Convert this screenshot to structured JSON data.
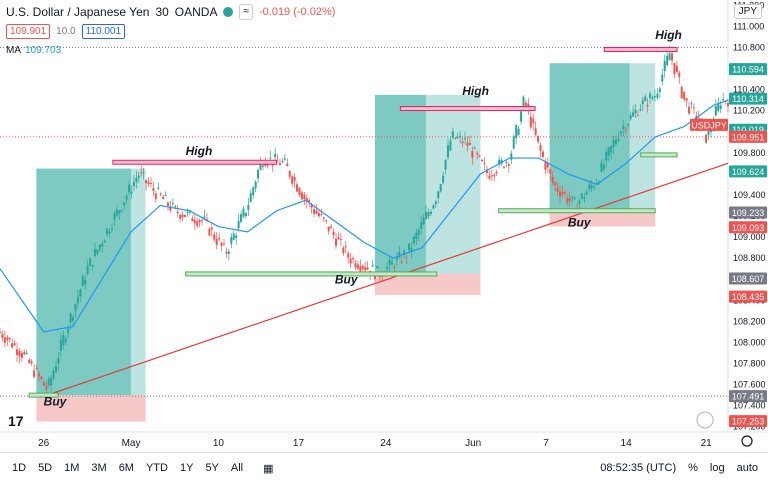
{
  "header": {
    "symbol_title": "U.S. Dollar / Japanese Yen",
    "interval": "30",
    "exchange": "OANDA",
    "change": "-0.019 (-0.02%)",
    "sell_price": "109.901",
    "spread": "10.0",
    "buy_price": "110.001",
    "ma_label": "MA",
    "ma_value": "109.703",
    "currency": "JPY"
  },
  "colors": {
    "up": "#26a69a",
    "down": "#ef5350",
    "ma": "#2196f3",
    "trend": "#e53935",
    "high": "#e91e63",
    "buy": "#4caf50",
    "profit": "#26a69a",
    "loss": "#ef9a9a"
  },
  "bottom": {
    "ranges": [
      "1D",
      "5D",
      "1M",
      "3M",
      "6M",
      "YTD",
      "1Y",
      "5Y",
      "All"
    ],
    "time": "08:52:35 (UTC)",
    "pct": "%",
    "log": "log",
    "auto": "auto"
  },
  "chart_data": {
    "type": "candlestick",
    "ylim": [
      107.15,
      111.25
    ],
    "y_ticks": [
      107.2,
      107.4,
      107.6,
      107.8,
      108.0,
      108.2,
      108.4,
      108.6,
      108.8,
      109.0,
      109.2,
      109.4,
      109.6,
      109.8,
      110.0,
      110.2,
      110.4,
      110.6,
      110.8,
      111.0,
      111.2
    ],
    "x_labels": [
      {
        "label": "26",
        "t": 0.06
      },
      {
        "label": "May",
        "t": 0.18
      },
      {
        "label": "10",
        "t": 0.3
      },
      {
        "label": "17",
        "t": 0.41
      },
      {
        "label": "24",
        "t": 0.53
      },
      {
        "label": "Jun",
        "t": 0.65
      },
      {
        "label": "7",
        "t": 0.75
      },
      {
        "label": "14",
        "t": 0.86
      },
      {
        "label": "21",
        "t": 0.97
      }
    ],
    "price_path": [
      [
        0,
        108.1
      ],
      [
        0.03,
        107.9
      ],
      [
        0.065,
        107.55
      ],
      [
        0.09,
        108.1
      ],
      [
        0.12,
        108.7
      ],
      [
        0.15,
        109.1
      ],
      [
        0.19,
        109.6
      ],
      [
        0.21,
        109.45
      ],
      [
        0.24,
        109.25
      ],
      [
        0.28,
        109.15
      ],
      [
        0.31,
        108.85
      ],
      [
        0.34,
        109.3
      ],
      [
        0.36,
        109.75
      ],
      [
        0.39,
        109.7
      ],
      [
        0.42,
        109.35
      ],
      [
        0.45,
        109.1
      ],
      [
        0.48,
        108.8
      ],
      [
        0.52,
        108.65
      ],
      [
        0.56,
        108.85
      ],
      [
        0.6,
        109.4
      ],
      [
        0.62,
        109.95
      ],
      [
        0.64,
        109.9
      ],
      [
        0.67,
        109.6
      ],
      [
        0.7,
        109.75
      ],
      [
        0.72,
        110.3
      ],
      [
        0.74,
        109.85
      ],
      [
        0.76,
        109.5
      ],
      [
        0.79,
        109.3
      ],
      [
        0.82,
        109.55
      ],
      [
        0.85,
        110.0
      ],
      [
        0.88,
        110.25
      ],
      [
        0.9,
        110.35
      ],
      [
        0.92,
        110.75
      ],
      [
        0.94,
        110.3
      ],
      [
        0.96,
        110.1
      ],
      [
        0.97,
        109.95
      ],
      [
        0.99,
        110.3
      ],
      [
        1.0,
        110.31
      ]
    ],
    "ma_path": [
      [
        0,
        108.7
      ],
      [
        0.06,
        108.1
      ],
      [
        0.1,
        108.15
      ],
      [
        0.14,
        108.6
      ],
      [
        0.18,
        109.05
      ],
      [
        0.22,
        109.3
      ],
      [
        0.26,
        109.25
      ],
      [
        0.3,
        109.1
      ],
      [
        0.34,
        109.05
      ],
      [
        0.38,
        109.25
      ],
      [
        0.42,
        109.35
      ],
      [
        0.46,
        109.15
      ],
      [
        0.5,
        108.95
      ],
      [
        0.54,
        108.8
      ],
      [
        0.58,
        108.9
      ],
      [
        0.62,
        109.25
      ],
      [
        0.66,
        109.6
      ],
      [
        0.7,
        109.75
      ],
      [
        0.74,
        109.75
      ],
      [
        0.78,
        109.6
      ],
      [
        0.82,
        109.5
      ],
      [
        0.86,
        109.7
      ],
      [
        0.9,
        109.95
      ],
      [
        0.94,
        110.05
      ],
      [
        0.98,
        110.25
      ],
      [
        1.0,
        110.3
      ]
    ],
    "trendline": [
      [
        0.065,
        107.5
      ],
      [
        1.0,
        109.7
      ]
    ],
    "annotations": [
      {
        "label": "High",
        "t": 0.255,
        "y": 109.78
      },
      {
        "label": "High",
        "t": 0.635,
        "y": 110.35
      },
      {
        "label": "High",
        "t": 0.9,
        "y": 110.88
      },
      {
        "label": "Buy",
        "t": 0.06,
        "y": 107.4
      },
      {
        "label": "Buy",
        "t": 0.46,
        "y": 108.56
      },
      {
        "label": "Buy",
        "t": 0.78,
        "y": 109.1
      }
    ],
    "high_zones": [
      {
        "t0": 0.155,
        "t1": 0.38,
        "y": 109.71
      },
      {
        "t0": 0.55,
        "t1": 0.735,
        "y": 110.22
      },
      {
        "t0": 0.83,
        "t1": 0.93,
        "y": 110.78
      }
    ],
    "buy_zones": [
      {
        "t0": 0.04,
        "t1": 0.08,
        "y": 107.5
      },
      {
        "t0": 0.255,
        "t1": 0.6,
        "y": 108.65
      },
      {
        "t0": 0.685,
        "t1": 0.9,
        "y": 109.25
      },
      {
        "t0": 0.88,
        "t1": 0.93,
        "y": 109.78
      }
    ],
    "positions": [
      {
        "t0": 0.05,
        "t1": 0.2,
        "entry": 107.5,
        "target": 109.65,
        "stop": 107.25,
        "mid_t": 0.18
      },
      {
        "t0": 0.515,
        "t1": 0.66,
        "entry": 108.65,
        "target": 110.35,
        "stop": 108.45,
        "mid_t": 0.585
      },
      {
        "t0": 0.755,
        "t1": 0.9,
        "entry": 109.25,
        "target": 110.65,
        "stop": 109.1,
        "mid_t": 0.865
      }
    ],
    "price_labels": [
      {
        "text": "110.594",
        "y": 110.594,
        "bg": "#26a69a"
      },
      {
        "text": "110.314",
        "y": 110.314,
        "bg": "#26a69a"
      },
      {
        "text": "110.019",
        "y": 110.019,
        "bg": "#26a69a"
      },
      {
        "text": "USDJPY",
        "y": 109.951,
        "bg": "#ef5350",
        "offset": -12
      },
      {
        "text": "109.951",
        "y": 109.951,
        "bg": "#ef5350"
      },
      {
        "text": "109.624",
        "y": 109.624,
        "bg": "#26a69a"
      },
      {
        "text": "109.233",
        "y": 109.233,
        "bg": "#787b86"
      },
      {
        "text": "109.093",
        "y": 109.093,
        "bg": "#ef5350"
      },
      {
        "text": "108.607",
        "y": 108.607,
        "bg": "#787b86"
      },
      {
        "text": "108.435",
        "y": 108.435,
        "bg": "#ef5350"
      },
      {
        "text": "107.491",
        "y": 107.491,
        "bg": "#787b86"
      },
      {
        "text": "107.253",
        "y": 107.253,
        "bg": "#ef5350"
      }
    ],
    "dotted_levels": [
      110.8,
      109.951,
      107.491
    ]
  }
}
